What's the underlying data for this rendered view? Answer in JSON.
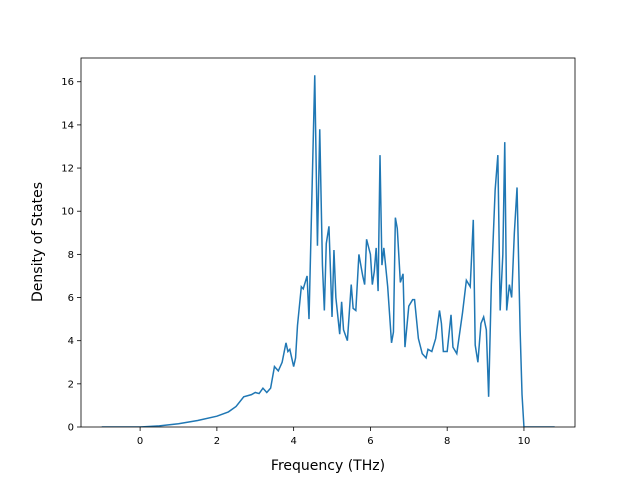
{
  "chart_data": {
    "type": "line",
    "x_label": "Frequency (THz)",
    "y_label": "Density of States",
    "xlim": [
      -1.54,
      11.33
    ],
    "ylim": [
      0,
      17.1
    ],
    "xticks": [
      0,
      2,
      4,
      6,
      8,
      10
    ],
    "yticks": [
      0,
      2,
      4,
      6,
      8,
      10,
      12,
      14,
      16
    ],
    "series": [
      {
        "color": "#1f77b4",
        "x": [
          -1,
          0,
          0.5,
          1,
          1.5,
          2,
          2.3,
          2.5,
          2.7,
          2.9,
          3.0,
          3.1,
          3.2,
          3.3,
          3.4,
          3.5,
          3.6,
          3.7,
          3.8,
          3.85,
          3.9,
          4.0,
          4.05,
          4.1,
          4.2,
          4.25,
          4.35,
          4.4,
          4.55,
          4.62,
          4.68,
          4.75,
          4.8,
          4.85,
          4.92,
          5.0,
          5.05,
          5.1,
          5.2,
          5.25,
          5.3,
          5.4,
          5.5,
          5.55,
          5.62,
          5.7,
          5.8,
          5.85,
          5.9,
          6.0,
          6.05,
          6.1,
          6.15,
          6.2,
          6.25,
          6.3,
          6.35,
          6.45,
          6.55,
          6.6,
          6.65,
          6.7,
          6.78,
          6.85,
          6.9,
          7.0,
          7.1,
          7.15,
          7.25,
          7.35,
          7.45,
          7.5,
          7.6,
          7.7,
          7.8,
          7.85,
          7.9,
          8.0,
          8.1,
          8.15,
          8.25,
          8.4,
          8.5,
          8.6,
          8.68,
          8.73,
          8.8,
          8.88,
          8.95,
          9.02,
          9.08,
          9.15,
          9.25,
          9.32,
          9.38,
          9.45,
          9.5,
          9.55,
          9.62,
          9.68,
          9.75,
          9.82,
          9.9,
          9.95,
          10.0,
          10.8
        ],
        "values": [
          0,
          0,
          0.05,
          0.15,
          0.3,
          0.5,
          0.7,
          0.95,
          1.4,
          1.5,
          1.6,
          1.55,
          1.8,
          1.6,
          1.8,
          2.8,
          2.6,
          3.0,
          3.9,
          3.5,
          3.6,
          2.8,
          3.2,
          4.7,
          6.5,
          6.4,
          7.0,
          5.0,
          16.3,
          8.4,
          13.8,
          7.5,
          5.4,
          8.5,
          9.3,
          5.1,
          8.2,
          6.0,
          4.3,
          5.8,
          4.5,
          4.0,
          6.6,
          5.5,
          5.4,
          8.0,
          7.0,
          6.6,
          8.7,
          8.0,
          6.6,
          7.2,
          8.3,
          6.3,
          12.6,
          7.5,
          8.3,
          6.5,
          3.9,
          4.4,
          9.7,
          9.2,
          6.7,
          7.1,
          3.7,
          5.6,
          5.9,
          5.9,
          4.1,
          3.4,
          3.2,
          3.6,
          3.5,
          4.1,
          5.4,
          4.8,
          3.5,
          3.5,
          5.2,
          3.7,
          3.4,
          5.3,
          6.8,
          6.5,
          9.6,
          3.8,
          3.0,
          4.8,
          5.1,
          4.5,
          1.4,
          6.6,
          11.0,
          12.6,
          5.4,
          8.0,
          13.2,
          5.4,
          6.6,
          6.0,
          9.0,
          11.1,
          4.5,
          1.5,
          0,
          0
        ]
      }
    ]
  }
}
